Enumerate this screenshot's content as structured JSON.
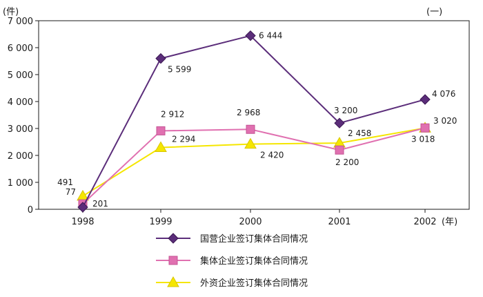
{
  "chart_data": {
    "type": "line",
    "y_unit_label": "(件)",
    "corner_label": "(一)",
    "x_unit_label": "(年)",
    "categories": [
      "1998",
      "1999",
      "2000",
      "2001",
      "2002"
    ],
    "ylim": [
      0,
      7000
    ],
    "yticks": [
      "0",
      "1 000",
      "2 000",
      "3 000",
      "4 000",
      "5 000",
      "6 000",
      "7 000"
    ],
    "grid": false,
    "legend_position": "bottom",
    "series": [
      {
        "name": "国营企业签订集体合同情况",
        "values": [
          77,
          5599,
          6444,
          3200,
          4076
        ],
        "labels": [
          "77",
          "5 599",
          "6 444",
          "3 200",
          "4 076"
        ],
        "marker": "diamond",
        "color": "#5b2d7a"
      },
      {
        "name": "集体企业签订集体合同情况",
        "values": [
          201,
          2912,
          2968,
          2200,
          3020
        ],
        "labels": [
          "201",
          "2 912",
          "2 968",
          "2 200",
          "3 020"
        ],
        "marker": "square",
        "color": "#e070b0"
      },
      {
        "name": "外资企业签订集体合同情况",
        "values": [
          491,
          2294,
          2420,
          2458,
          3018
        ],
        "labels": [
          "491",
          "2 294",
          "2 420",
          "2 458",
          "3 018"
        ],
        "marker": "triangle",
        "color": "#f5e600"
      }
    ]
  }
}
